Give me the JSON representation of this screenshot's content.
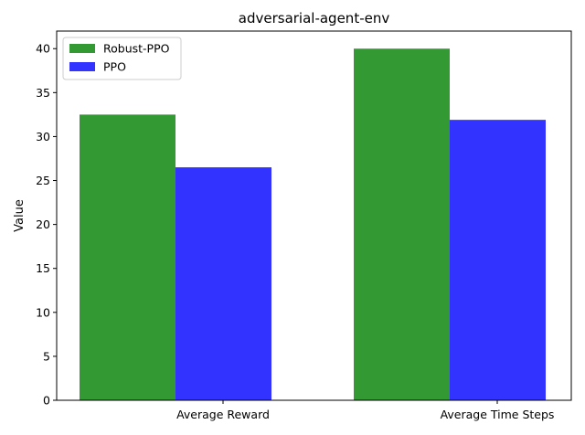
{
  "chart_data": {
    "type": "bar",
    "title": "adversarial-agent-env",
    "xlabel": "",
    "ylabel": "Value",
    "categories": [
      "Average Reward",
      "Average Time Steps"
    ],
    "series": [
      {
        "name": "Robust-PPO",
        "values": [
          32.5,
          40.0
        ],
        "color": "#339933"
      },
      {
        "name": "PPO",
        "values": [
          26.5,
          31.9
        ],
        "color": "#3333ff"
      }
    ],
    "ylim": [
      0,
      42
    ],
    "yticks": [
      0,
      5,
      10,
      15,
      20,
      25,
      30,
      35,
      40
    ],
    "grid": false,
    "legend_position": "top-left"
  }
}
